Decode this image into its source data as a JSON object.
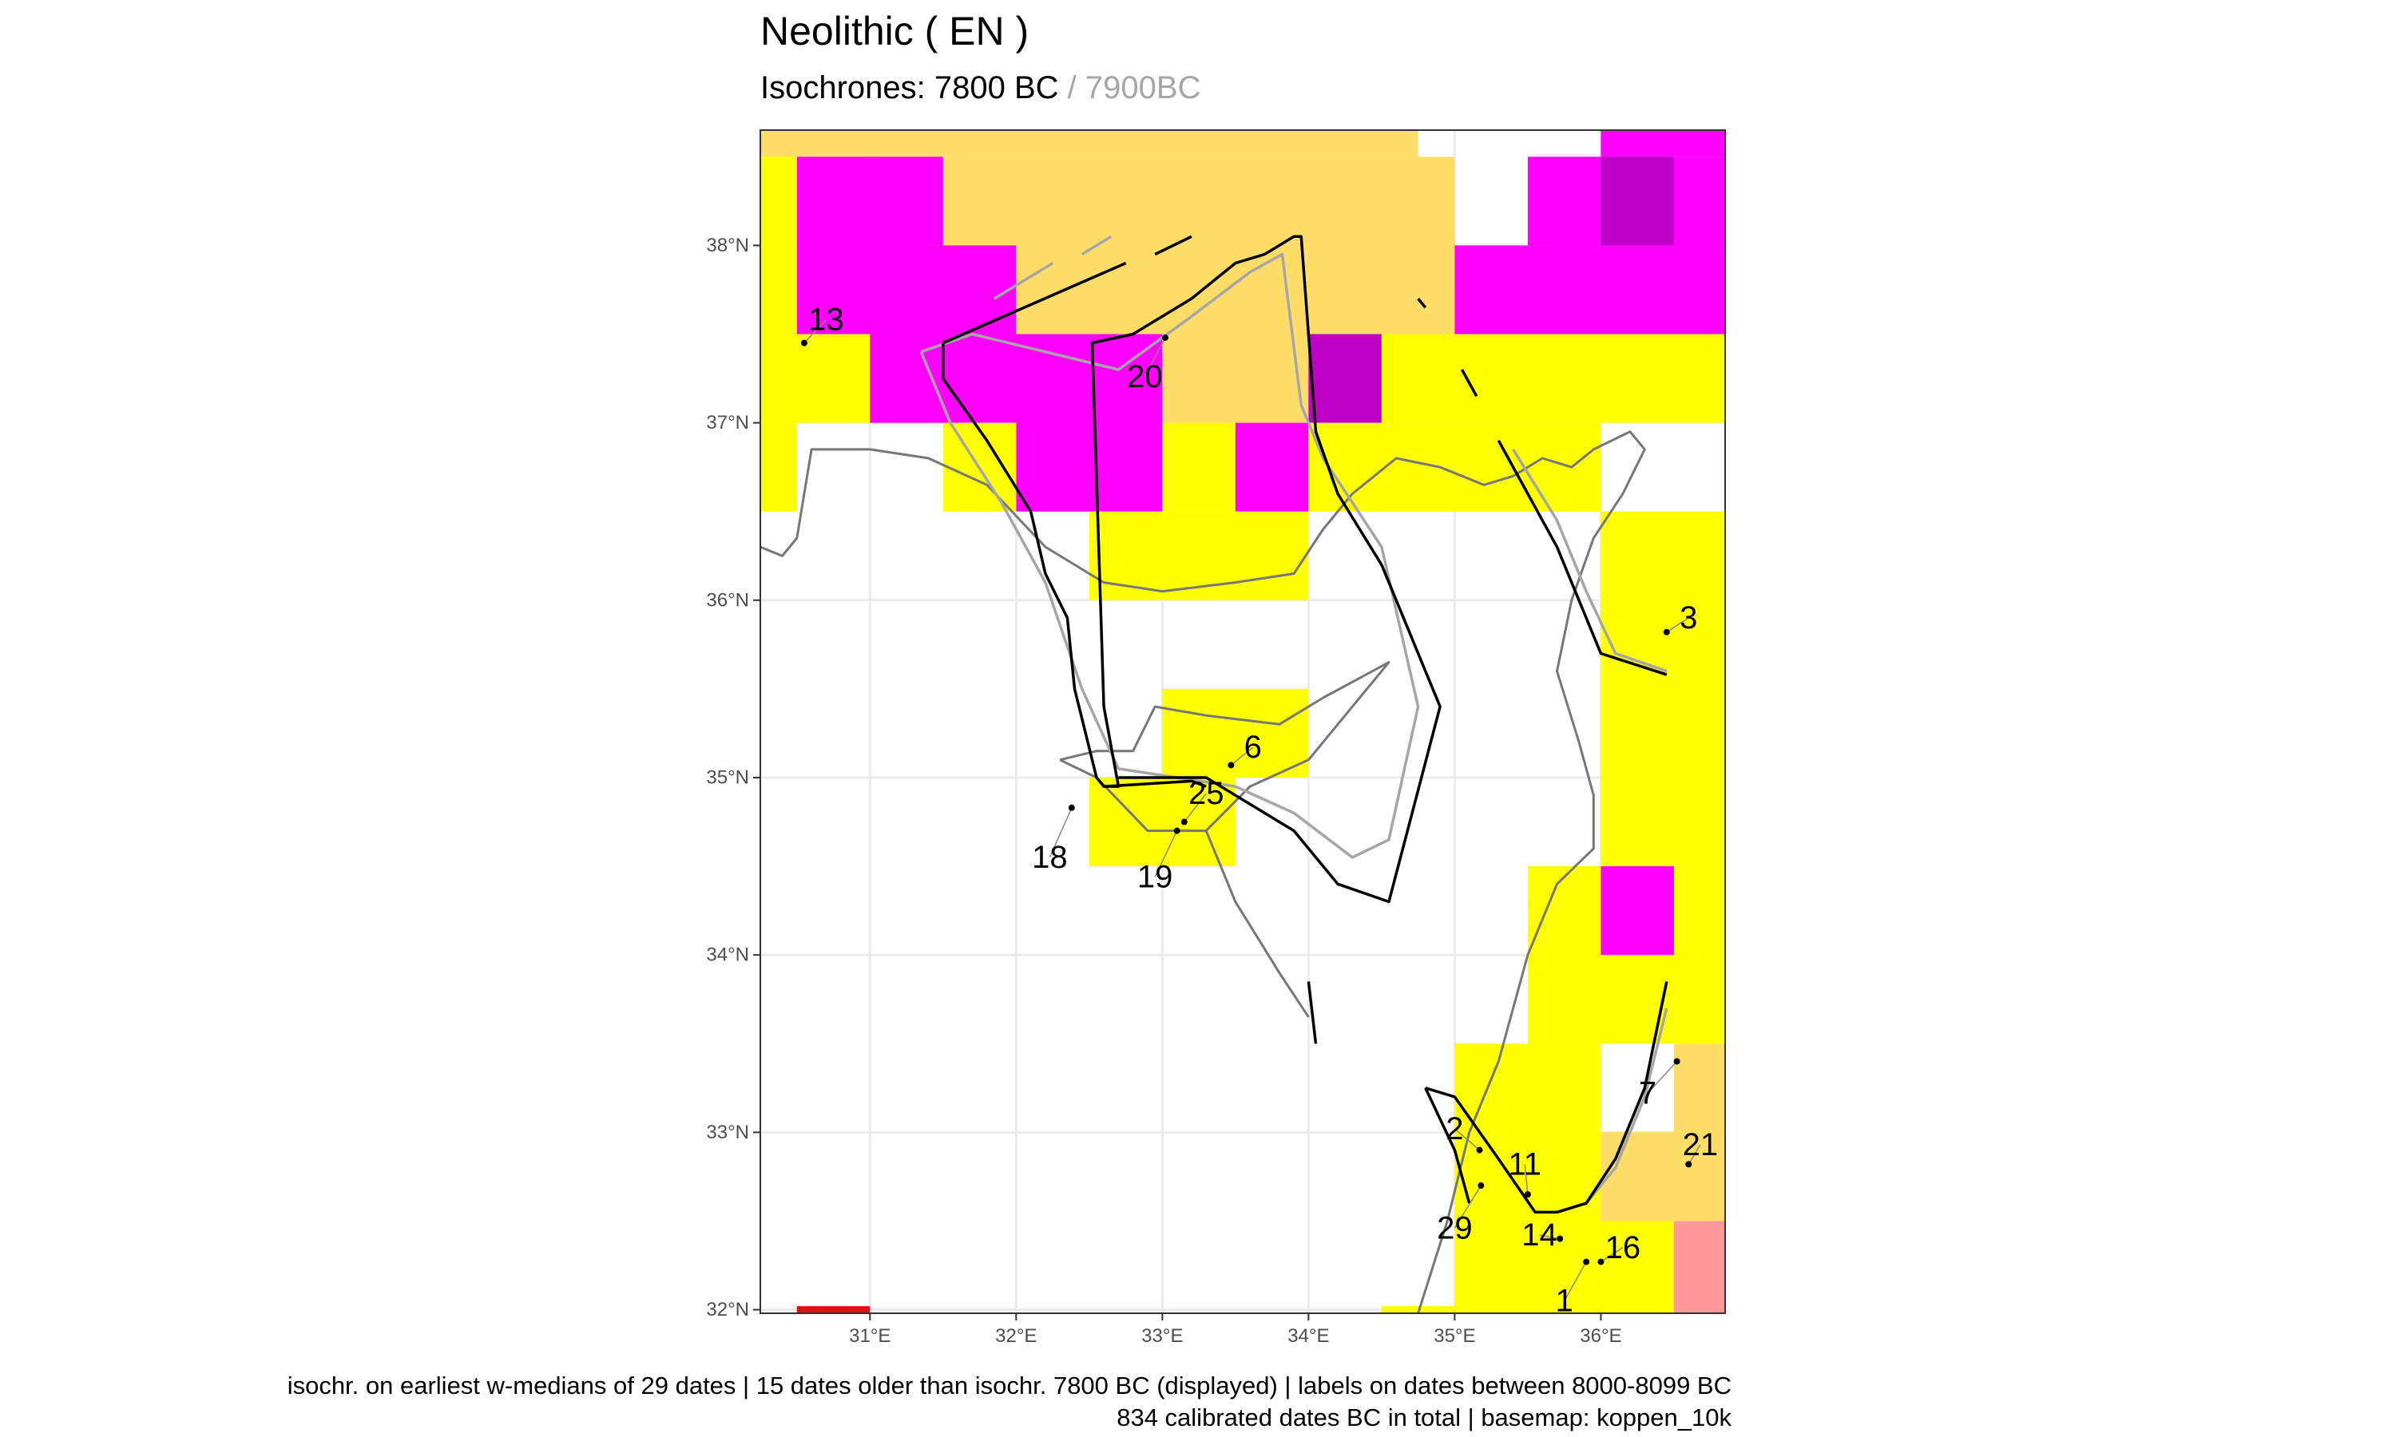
{
  "title": "Neolithic ( EN )",
  "subtitle": {
    "primary": "Isochrones: 7800 BC",
    "separator": " / ",
    "secondary": "7900BC"
  },
  "caption": {
    "line1": "isochr. on earliest w-medians of 29 dates |  15 dates older than isochr. 7800 BC (displayed) | labels on dates between 8000-8099 BC",
    "line2": "834 calibrated dates BC in total | basemap: koppen_10k"
  },
  "colors": {
    "yellow": "#ffff00",
    "magenta": "#ff00ff",
    "purple": "#c000c8",
    "tan": "#ffdd66",
    "salmon": "#ff9999",
    "red": "#dd1111",
    "coast": "#777777",
    "isochrone_current": "#000000",
    "isochrone_previous": "#a6a6a6",
    "grid": "#ebebeb"
  },
  "map": {
    "extent": {
      "lon": [
        30.25,
        36.85
      ],
      "lat": [
        31.98,
        38.65
      ]
    },
    "x_ticks": [
      {
        "value": 31,
        "label": "31°E"
      },
      {
        "value": 32,
        "label": "32°E"
      },
      {
        "value": 33,
        "label": "33°E"
      },
      {
        "value": 34,
        "label": "34°E"
      },
      {
        "value": 35,
        "label": "35°E"
      },
      {
        "value": 36,
        "label": "36°E"
      }
    ],
    "y_ticks": [
      {
        "value": 32,
        "label": "32°N"
      },
      {
        "value": 33,
        "label": "33°N"
      },
      {
        "value": 34,
        "label": "34°N"
      },
      {
        "value": 35,
        "label": "35°N"
      },
      {
        "value": 36,
        "label": "36°N"
      },
      {
        "value": 37,
        "label": "37°N"
      },
      {
        "value": 38,
        "label": "38°N"
      }
    ],
    "basemap_cells": [
      {
        "lon": [
          30.25,
          34.75
        ],
        "lat": [
          38.5,
          38.65
        ],
        "color": "tan"
      },
      {
        "lon": [
          36.0,
          36.85
        ],
        "lat": [
          38.5,
          38.65
        ],
        "color": "magenta"
      },
      {
        "lon": [
          31.5,
          35.0
        ],
        "lat": [
          37.5,
          38.5
        ],
        "color": "tan"
      },
      {
        "lon": [
          30.5,
          31.5
        ],
        "lat": [
          38.0,
          38.5
        ],
        "color": "magenta"
      },
      {
        "lon": [
          30.5,
          32.0
        ],
        "lat": [
          37.5,
          38.0
        ],
        "color": "magenta"
      },
      {
        "lon": [
          30.25,
          30.5
        ],
        "lat": [
          36.5,
          38.5
        ],
        "color": "yellow"
      },
      {
        "lon": [
          30.5,
          31.0
        ],
        "lat": [
          37.0,
          37.5
        ],
        "color": "yellow"
      },
      {
        "lon": [
          31.0,
          32.5
        ],
        "lat": [
          37.0,
          37.5
        ],
        "color": "magenta"
      },
      {
        "lon": [
          32.0,
          33.0
        ],
        "lat": [
          36.5,
          37.5
        ],
        "color": "magenta"
      },
      {
        "lon": [
          31.5,
          32.0
        ],
        "lat": [
          36.5,
          37.0
        ],
        "color": "yellow"
      },
      {
        "lon": [
          33.0,
          34.0
        ],
        "lat": [
          37.0,
          37.5
        ],
        "color": "tan"
      },
      {
        "lon": [
          34.0,
          34.5
        ],
        "lat": [
          37.0,
          37.5
        ],
        "color": "purple"
      },
      {
        "lon": [
          33.0,
          33.5
        ],
        "lat": [
          36.5,
          37.0
        ],
        "color": "yellow"
      },
      {
        "lon": [
          33.5,
          34.0
        ],
        "lat": [
          36.5,
          37.0
        ],
        "color": "magenta"
      },
      {
        "lon": [
          34.0,
          36.0
        ],
        "lat": [
          36.5,
          37.0
        ],
        "color": "yellow"
      },
      {
        "lon": [
          34.5,
          36.85
        ],
        "lat": [
          37.0,
          37.5
        ],
        "color": "yellow"
      },
      {
        "lon": [
          35.0,
          36.85
        ],
        "lat": [
          37.5,
          38.0
        ],
        "color": "magenta"
      },
      {
        "lon": [
          35.5,
          36.0
        ],
        "lat": [
          38.0,
          38.5
        ],
        "color": "magenta"
      },
      {
        "lon": [
          36.0,
          36.5
        ],
        "lat": [
          38.0,
          38.5
        ],
        "color": "purple"
      },
      {
        "lon": [
          36.5,
          36.85
        ],
        "lat": [
          38.0,
          38.5
        ],
        "color": "magenta"
      },
      {
        "lon": [
          32.5,
          34.0
        ],
        "lat": [
          36.0,
          36.5
        ],
        "color": "yellow"
      },
      {
        "lon": [
          36.0,
          36.85
        ],
        "lat": [
          33.5,
          36.5
        ],
        "color": "yellow"
      },
      {
        "lon": [
          33.0,
          34.0
        ],
        "lat": [
          35.0,
          35.5
        ],
        "color": "yellow"
      },
      {
        "lon": [
          32.5,
          33.5
        ],
        "lat": [
          34.5,
          35.0
        ],
        "color": "yellow"
      },
      {
        "lon": [
          35.5,
          36.0
        ],
        "lat": [
          33.5,
          34.5
        ],
        "color": "yellow"
      },
      {
        "lon": [
          36.0,
          36.5
        ],
        "lat": [
          34.0,
          34.5
        ],
        "color": "magenta"
      },
      {
        "lon": [
          35.0,
          36.0
        ],
        "lat": [
          31.98,
          33.5
        ],
        "color": "yellow"
      },
      {
        "lon": [
          36.0,
          36.5
        ],
        "lat": [
          31.98,
          33.0
        ],
        "color": "yellow"
      },
      {
        "lon": [
          36.5,
          36.85
        ],
        "lat": [
          32.5,
          33.5
        ],
        "color": "tan"
      },
      {
        "lon": [
          36.0,
          36.5
        ],
        "lat": [
          32.5,
          33.0
        ],
        "color": "tan"
      },
      {
        "lon": [
          36.5,
          36.85
        ],
        "lat": [
          31.98,
          32.5
        ],
        "color": "salmon"
      },
      {
        "lon": [
          34.5,
          35.0
        ],
        "lat": [
          31.98,
          32.02
        ],
        "color": "yellow"
      },
      {
        "lon": [
          30.5,
          31.0
        ],
        "lat": [
          31.98,
          32.02
        ],
        "color": "red"
      }
    ],
    "coastlines": [
      {
        "name": "anatolia-coast",
        "points": [
          [
            30.25,
            36.3
          ],
          [
            30.4,
            36.25
          ],
          [
            30.5,
            36.35
          ],
          [
            30.6,
            36.85
          ],
          [
            31.0,
            36.85
          ],
          [
            31.4,
            36.8
          ],
          [
            31.8,
            36.65
          ],
          [
            32.2,
            36.3
          ],
          [
            32.6,
            36.1
          ],
          [
            33.0,
            36.05
          ],
          [
            33.5,
            36.1
          ],
          [
            33.9,
            36.15
          ],
          [
            34.1,
            36.4
          ],
          [
            34.3,
            36.6
          ],
          [
            34.6,
            36.8
          ],
          [
            34.9,
            36.75
          ],
          [
            35.2,
            36.65
          ],
          [
            35.4,
            36.7
          ],
          [
            35.6,
            36.8
          ],
          [
            35.8,
            36.75
          ],
          [
            35.95,
            36.85
          ],
          [
            36.2,
            36.95
          ],
          [
            36.3,
            36.85
          ],
          [
            36.15,
            36.6
          ],
          [
            35.95,
            36.35
          ],
          [
            35.8,
            36.0
          ],
          [
            35.7,
            35.6
          ],
          [
            35.85,
            35.2
          ],
          [
            35.95,
            34.9
          ],
          [
            35.95,
            34.6
          ],
          [
            35.7,
            34.4
          ],
          [
            35.5,
            34.0
          ],
          [
            35.3,
            33.4
          ],
          [
            35.1,
            33.0
          ],
          [
            34.95,
            32.5
          ],
          [
            34.75,
            31.98
          ]
        ]
      },
      {
        "name": "cyprus-coast",
        "points": [
          [
            32.3,
            35.1
          ],
          [
            32.55,
            35.0
          ],
          [
            32.9,
            34.7
          ],
          [
            33.3,
            34.7
          ],
          [
            33.6,
            34.95
          ],
          [
            34.0,
            35.1
          ],
          [
            34.55,
            35.65
          ],
          [
            34.1,
            35.45
          ],
          [
            33.8,
            35.3
          ],
          [
            33.3,
            35.35
          ],
          [
            32.95,
            35.4
          ],
          [
            32.8,
            35.15
          ],
          [
            32.55,
            35.15
          ],
          [
            32.3,
            35.1
          ]
        ]
      },
      {
        "name": "mainland-link",
        "points": [
          [
            33.3,
            34.7
          ],
          [
            33.5,
            34.3
          ],
          [
            33.8,
            33.9
          ],
          [
            34.0,
            33.65
          ]
        ]
      }
    ],
    "isochrones_previous": [
      {
        "name": "isochrone-prev-west",
        "points": [
          [
            31.35,
            37.4
          ],
          [
            31.55,
            37.0
          ],
          [
            31.9,
            36.55
          ],
          [
            32.2,
            36.1
          ],
          [
            32.45,
            35.5
          ],
          [
            32.7,
            35.05
          ],
          [
            33.1,
            35.0
          ],
          [
            33.5,
            34.95
          ],
          [
            33.9,
            34.8
          ],
          [
            34.3,
            34.55
          ],
          [
            34.55,
            34.65
          ],
          [
            34.75,
            35.4
          ],
          [
            34.5,
            36.3
          ],
          [
            34.1,
            36.8
          ],
          [
            33.95,
            37.1
          ],
          [
            33.82,
            37.95
          ],
          [
            33.6,
            37.85
          ],
          [
            33.2,
            37.6
          ],
          [
            32.7,
            37.3
          ],
          [
            32.2,
            37.4
          ],
          [
            31.7,
            37.5
          ],
          [
            31.35,
            37.4
          ]
        ]
      },
      {
        "name": "isochrone-prev-east-a",
        "points": [
          [
            35.4,
            36.85
          ],
          [
            35.7,
            36.45
          ],
          [
            35.9,
            36.05
          ],
          [
            36.1,
            35.7
          ],
          [
            36.45,
            35.6
          ]
        ]
      },
      {
        "name": "isochrone-prev-east-b",
        "points": [
          [
            35.7,
            32.55
          ],
          [
            35.9,
            32.6
          ],
          [
            36.1,
            32.8
          ],
          [
            36.3,
            33.2
          ],
          [
            36.45,
            33.7
          ]
        ]
      },
      {
        "name": "isochrone-prev-dash-a",
        "points": [
          [
            31.85,
            37.7
          ],
          [
            32.25,
            37.9
          ]
        ]
      },
      {
        "name": "isochrone-prev-dash-b",
        "points": [
          [
            32.45,
            37.95
          ],
          [
            32.65,
            38.05
          ]
        ]
      }
    ],
    "isochrones_current": [
      {
        "name": "isochrone-current-west",
        "points": [
          [
            31.5,
            37.45
          ],
          [
            31.5,
            37.25
          ],
          [
            31.8,
            36.9
          ],
          [
            32.1,
            36.5
          ],
          [
            32.2,
            36.15
          ],
          [
            32.35,
            35.9
          ],
          [
            32.4,
            35.5
          ],
          [
            32.55,
            35.0
          ],
          [
            32.6,
            34.95
          ],
          [
            32.7,
            34.95
          ],
          [
            32.6,
            35.4
          ],
          [
            32.52,
            37.45
          ],
          [
            32.8,
            37.5
          ],
          [
            33.2,
            37.7
          ],
          [
            33.5,
            37.9
          ],
          [
            33.7,
            37.95
          ],
          [
            33.9,
            38.05
          ],
          [
            33.95,
            38.05
          ],
          [
            34.05,
            36.95
          ],
          [
            34.2,
            36.6
          ],
          [
            34.5,
            36.2
          ],
          [
            34.9,
            35.4
          ],
          [
            34.55,
            34.3
          ],
          [
            34.2,
            34.4
          ],
          [
            33.9,
            34.7
          ],
          [
            33.3,
            35.0
          ],
          [
            32.7,
            35.0
          ]
        ]
      },
      {
        "name": "isochrone-current-cyprus",
        "points": [
          [
            32.6,
            34.95
          ],
          [
            33.2,
            34.98
          ],
          [
            33.3,
            34.95
          ]
        ]
      },
      {
        "name": "isochrone-current-stub",
        "points": [
          [
            34.0,
            33.85
          ],
          [
            34.05,
            33.5
          ]
        ]
      },
      {
        "name": "isochrone-current-dash-a",
        "points": [
          [
            31.5,
            37.45
          ],
          [
            32.75,
            37.9
          ]
        ]
      },
      {
        "name": "isochrone-current-dash-b",
        "points": [
          [
            32.95,
            37.95
          ],
          [
            33.2,
            38.05
          ]
        ]
      },
      {
        "name": "isochrone-current-dash-c",
        "points": [
          [
            35.05,
            37.3
          ],
          [
            35.15,
            37.15
          ]
        ]
      },
      {
        "name": "isochrone-current-dash-d",
        "points": [
          [
            34.75,
            37.7
          ],
          [
            34.8,
            37.65
          ]
        ]
      },
      {
        "name": "isochrone-current-east",
        "points": [
          [
            35.3,
            36.9
          ],
          [
            35.7,
            36.3
          ],
          [
            36.0,
            35.7
          ],
          [
            36.45,
            35.58
          ]
        ]
      },
      {
        "name": "isochrone-current-south",
        "points": [
          [
            34.8,
            33.25
          ],
          [
            35.0,
            33.2
          ],
          [
            35.3,
            32.85
          ],
          [
            35.55,
            32.55
          ],
          [
            35.7,
            32.55
          ],
          [
            35.9,
            32.6
          ],
          [
            36.1,
            32.85
          ],
          [
            36.3,
            33.25
          ],
          [
            36.45,
            33.85
          ]
        ]
      },
      {
        "name": "isochrone-current-south-b",
        "points": [
          [
            34.8,
            33.25
          ],
          [
            35.0,
            32.9
          ],
          [
            35.1,
            32.6
          ]
        ]
      }
    ],
    "sites": [
      {
        "label": "13",
        "lon": 30.55,
        "lat": 37.45,
        "label_lon": 30.7,
        "label_lat": 37.58
      },
      {
        "label": "20",
        "lon": 33.02,
        "lat": 37.48,
        "label_lon": 32.88,
        "label_lat": 37.26
      },
      {
        "label": "3",
        "lon": 36.45,
        "lat": 35.82,
        "label_lon": 36.6,
        "label_lat": 35.9
      },
      {
        "label": "6",
        "lon": 33.47,
        "lat": 35.07,
        "label_lon": 33.62,
        "label_lat": 35.17
      },
      {
        "label": "25",
        "lon": 33.15,
        "lat": 34.75,
        "label_lon": 33.3,
        "label_lat": 34.91
      },
      {
        "label": "18",
        "lon": 32.38,
        "lat": 34.83,
        "label_lon": 32.23,
        "label_lat": 34.55
      },
      {
        "label": "19",
        "lon": 33.1,
        "lat": 34.7,
        "label_lon": 32.95,
        "label_lat": 34.44
      },
      {
        "label": "7",
        "lon": 36.52,
        "lat": 33.4,
        "label_lon": 36.32,
        "label_lat": 33.22
      },
      {
        "label": "2",
        "lon": 35.17,
        "lat": 32.9,
        "label_lon": 35.0,
        "label_lat": 33.02
      },
      {
        "label": "11",
        "lon": 35.5,
        "lat": 32.65,
        "label_lon": 35.48,
        "label_lat": 32.82
      },
      {
        "label": "21",
        "lon": 36.6,
        "lat": 32.82,
        "label_lon": 36.68,
        "label_lat": 32.93
      },
      {
        "label": "29",
        "lon": 35.18,
        "lat": 32.7,
        "label_lon": 35.0,
        "label_lat": 32.46
      },
      {
        "label": "14",
        "lon": 35.72,
        "lat": 32.4,
        "label_lon": 35.58,
        "label_lat": 32.42
      },
      {
        "label": "16",
        "lon": 36.0,
        "lat": 32.27,
        "label_lon": 36.15,
        "label_lat": 32.35
      },
      {
        "label": "1",
        "lon": 35.9,
        "lat": 32.27,
        "label_lon": 35.75,
        "label_lat": 32.05
      }
    ]
  }
}
